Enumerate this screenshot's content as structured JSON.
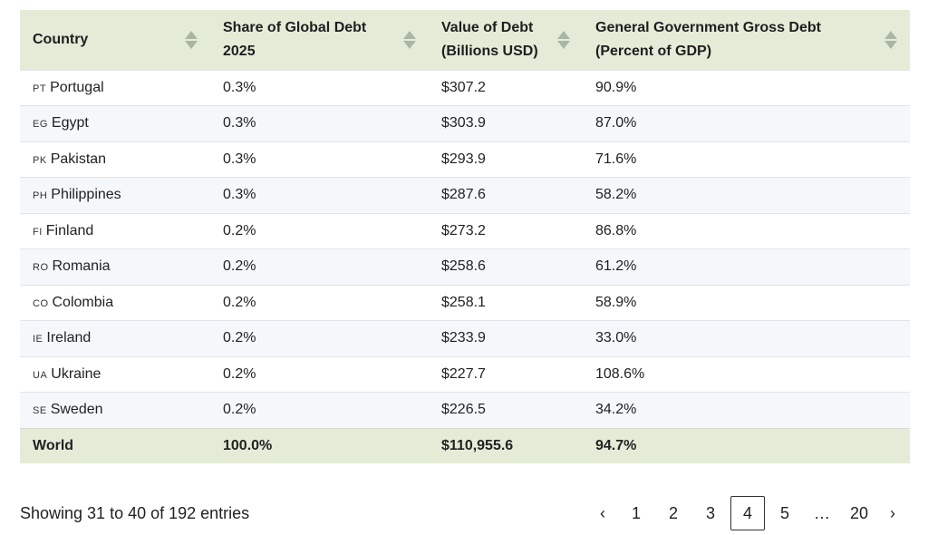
{
  "columns": [
    {
      "label_line1": "Country",
      "label_line2": ""
    },
    {
      "label_line1": "Share of Global Debt",
      "label_line2": "2025"
    },
    {
      "label_line1": "Value of Debt",
      "label_line2": "(Billions USD)"
    },
    {
      "label_line1": "General Government Gross Debt",
      "label_line2": "(Percent of GDP)"
    }
  ],
  "rows": [
    {
      "code": "PT",
      "country": "Portugal",
      "share": "0.3%",
      "value": "$307.2",
      "gdp": "90.9%"
    },
    {
      "code": "EG",
      "country": "Egypt",
      "share": "0.3%",
      "value": "$303.9",
      "gdp": "87.0%"
    },
    {
      "code": "PK",
      "country": "Pakistan",
      "share": "0.3%",
      "value": "$293.9",
      "gdp": "71.6%"
    },
    {
      "code": "PH",
      "country": "Philippines",
      "share": "0.3%",
      "value": "$287.6",
      "gdp": "58.2%"
    },
    {
      "code": "FI",
      "country": "Finland",
      "share": "0.2%",
      "value": "$273.2",
      "gdp": "86.8%"
    },
    {
      "code": "RO",
      "country": "Romania",
      "share": "0.2%",
      "value": "$258.6",
      "gdp": "61.2%"
    },
    {
      "code": "CO",
      "country": "Colombia",
      "share": "0.2%",
      "value": "$258.1",
      "gdp": "58.9%"
    },
    {
      "code": "IE",
      "country": "Ireland",
      "share": "0.2%",
      "value": "$233.9",
      "gdp": "33.0%"
    },
    {
      "code": "UA",
      "country": "Ukraine",
      "share": "0.2%",
      "value": "$227.7",
      "gdp": "108.6%"
    },
    {
      "code": "SE",
      "country": "Sweden",
      "share": "0.2%",
      "value": "$226.5",
      "gdp": "34.2%"
    }
  ],
  "footer": {
    "country": "World",
    "share": "100.0%",
    "value": "$110,955.6",
    "gdp": "94.7%"
  },
  "info_text": "Showing 31 to 40 of 192 entries",
  "pagination": {
    "prev": "‹",
    "next": "›",
    "pages": [
      "1",
      "2",
      "3",
      "4",
      "5",
      "…",
      "20"
    ],
    "active": "4"
  },
  "colors": {
    "header_bg": "#e4ecd8",
    "stripe_bg": "#f4f8fb",
    "sort_icon": "#a9b6a3"
  },
  "icons": {
    "sort": "sort-updown-icon"
  }
}
